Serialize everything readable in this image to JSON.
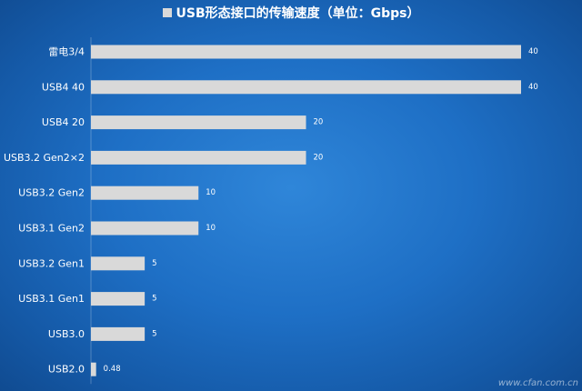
{
  "chart_data": {
    "type": "bar",
    "orientation": "horizontal",
    "title": "USB形态接口的传输速度（单位：Gbps）",
    "categories": [
      "雷电3/4",
      "USB4 40",
      "USB4 20",
      "USB3.2 Gen2×2",
      "USB3.2 Gen2",
      "USB3.1 Gen2",
      "USB3.2 Gen1",
      "USB3.1 Gen1",
      "USB3.0",
      "USB2.0"
    ],
    "values": [
      40,
      40,
      20,
      20,
      10,
      10,
      5,
      5,
      5,
      0.48
    ],
    "value_labels": [
      "40",
      "40",
      "20",
      "20",
      "10",
      "10",
      "5",
      "5",
      "5",
      "0.48"
    ],
    "xlabel": "",
    "ylabel": "",
    "xlim": [
      0,
      40
    ],
    "grid": false,
    "legend": "none",
    "colors": {
      "bar": "#d9d9d9",
      "text": "#ffffff",
      "background": "#1e6fc5"
    }
  },
  "watermark": "www.cfan.com.cn"
}
